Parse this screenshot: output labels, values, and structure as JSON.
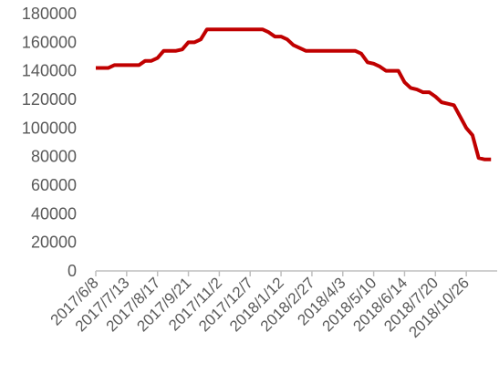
{
  "chart_data": {
    "type": "line",
    "categories": [
      "2017/6/8",
      null,
      null,
      null,
      null,
      "2017/7/13",
      null,
      null,
      null,
      null,
      "2017/8/17",
      null,
      null,
      null,
      null,
      "2017/9/21",
      null,
      null,
      null,
      null,
      "2017/11/2",
      null,
      null,
      null,
      null,
      "2017/12/7",
      null,
      null,
      null,
      null,
      "2018/1/12",
      null,
      null,
      null,
      null,
      "2018/2/27",
      null,
      null,
      null,
      null,
      "2018/4/3",
      null,
      null,
      null,
      null,
      "2018/5/10",
      null,
      null,
      null,
      null,
      "2018/6/14",
      null,
      null,
      null,
      null,
      "2018/7/20",
      null,
      null,
      null,
      null,
      "2018/10/26",
      null,
      null,
      null,
      null
    ],
    "series": [
      {
        "color": "#c00000",
        "values": [
          142000,
          142000,
          142000,
          144000,
          144000,
          144000,
          144000,
          144000,
          147000,
          147000,
          149000,
          154000,
          154000,
          154000,
          155000,
          160000,
          160000,
          162000,
          169000,
          169000,
          169000,
          169000,
          169000,
          169000,
          169000,
          169000,
          169000,
          169000,
          167000,
          164000,
          164000,
          162000,
          158000,
          156000,
          154000,
          154000,
          154000,
          154000,
          154000,
          154000,
          154000,
          154000,
          154000,
          152000,
          146000,
          145000,
          143000,
          140000,
          140000,
          140000,
          132000,
          128000,
          127000,
          125000,
          125000,
          122000,
          118000,
          117000,
          116000,
          108000,
          100000,
          95000,
          79000,
          78000,
          78000
        ]
      }
    ],
    "ylim": [
      0,
      180000
    ],
    "yticks": [
      0,
      20000,
      40000,
      60000,
      80000,
      100000,
      120000,
      140000,
      160000,
      180000
    ],
    "grid": false
  }
}
